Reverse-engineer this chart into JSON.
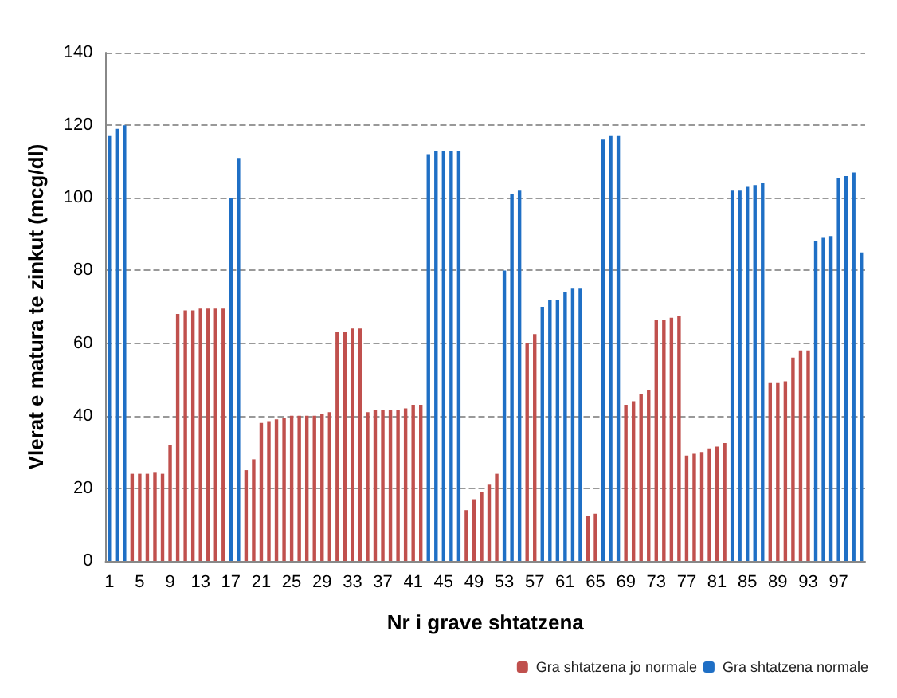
{
  "chart_data": {
    "type": "bar",
    "xlabel": "Nr i grave shtatzena",
    "ylabel": "Vlerat e matura te zinkut (mcg/dl)",
    "categories": [
      "1",
      null,
      null,
      null,
      "5",
      null,
      null,
      null,
      "9",
      null,
      null,
      null,
      "13",
      null,
      null,
      null,
      "17",
      null,
      null,
      null,
      "21",
      null,
      null,
      null,
      "25",
      null,
      null,
      null,
      "29",
      null,
      null,
      null,
      "33",
      null,
      null,
      null,
      "37",
      null,
      null,
      null,
      "41",
      null,
      null,
      null,
      "45",
      null,
      null,
      null,
      "49",
      null,
      null,
      null,
      "53",
      null,
      null,
      null,
      "57",
      null,
      null,
      null,
      "61",
      null,
      null,
      null,
      "65",
      null,
      null,
      null,
      "69",
      null,
      null,
      null,
      "73",
      null,
      null,
      null,
      "77",
      null,
      null,
      null,
      "81",
      null,
      null,
      null,
      "85",
      null,
      null,
      null,
      "89",
      null,
      null,
      null,
      "93",
      null,
      null,
      null,
      "97",
      null,
      null,
      null
    ],
    "series": [
      {
        "name": "Gra shtatzena jo normale",
        "color": "#c0504d",
        "values": [
          null,
          null,
          null,
          24,
          24,
          24,
          24.5,
          24,
          32,
          68,
          69,
          69,
          69.5,
          69.5,
          69.5,
          69.5,
          null,
          null,
          25,
          28,
          38,
          38.5,
          39,
          39.5,
          40,
          40,
          40,
          40,
          40.5,
          41,
          63,
          63,
          64,
          64,
          41,
          41.5,
          41.5,
          41.5,
          41.5,
          42,
          43,
          43,
          null,
          null,
          null,
          null,
          null,
          14,
          17,
          19,
          21,
          24,
          null,
          null,
          null,
          60,
          62.5,
          null,
          null,
          null,
          null,
          null,
          null,
          12.5,
          13,
          null,
          null,
          null,
          43,
          44,
          46,
          47,
          66.5,
          66.5,
          67,
          67.5,
          29,
          29.5,
          30,
          31,
          31.5,
          32.5,
          null,
          null,
          null,
          null,
          null,
          49,
          49,
          49.5,
          56,
          58,
          58,
          null,
          null,
          null,
          null,
          null,
          null,
          null
        ]
      },
      {
        "name": "Gra shtatzena normale",
        "color": "#1f6fc5",
        "values": [
          117,
          119,
          120,
          null,
          null,
          null,
          null,
          null,
          null,
          null,
          null,
          null,
          null,
          null,
          null,
          null,
          100,
          111,
          null,
          null,
          null,
          null,
          null,
          null,
          null,
          null,
          null,
          null,
          null,
          null,
          null,
          null,
          null,
          null,
          null,
          null,
          null,
          null,
          null,
          null,
          null,
          null,
          112,
          113,
          113,
          113,
          113,
          null,
          null,
          null,
          null,
          null,
          80,
          101,
          102,
          null,
          null,
          70,
          72,
          72,
          74,
          75,
          75,
          null,
          null,
          116,
          117,
          117,
          null,
          null,
          null,
          null,
          null,
          null,
          null,
          null,
          null,
          null,
          null,
          null,
          null,
          null,
          102,
          102,
          103,
          103.5,
          104,
          null,
          null,
          null,
          null,
          null,
          null,
          88,
          89,
          89.5,
          105.5,
          106,
          107,
          85
        ]
      }
    ],
    "ylim": [
      0,
      140
    ],
    "yticks": [
      0,
      20,
      40,
      60,
      80,
      100,
      120,
      140
    ],
    "grid": "y",
    "legend": "bottom right"
  }
}
